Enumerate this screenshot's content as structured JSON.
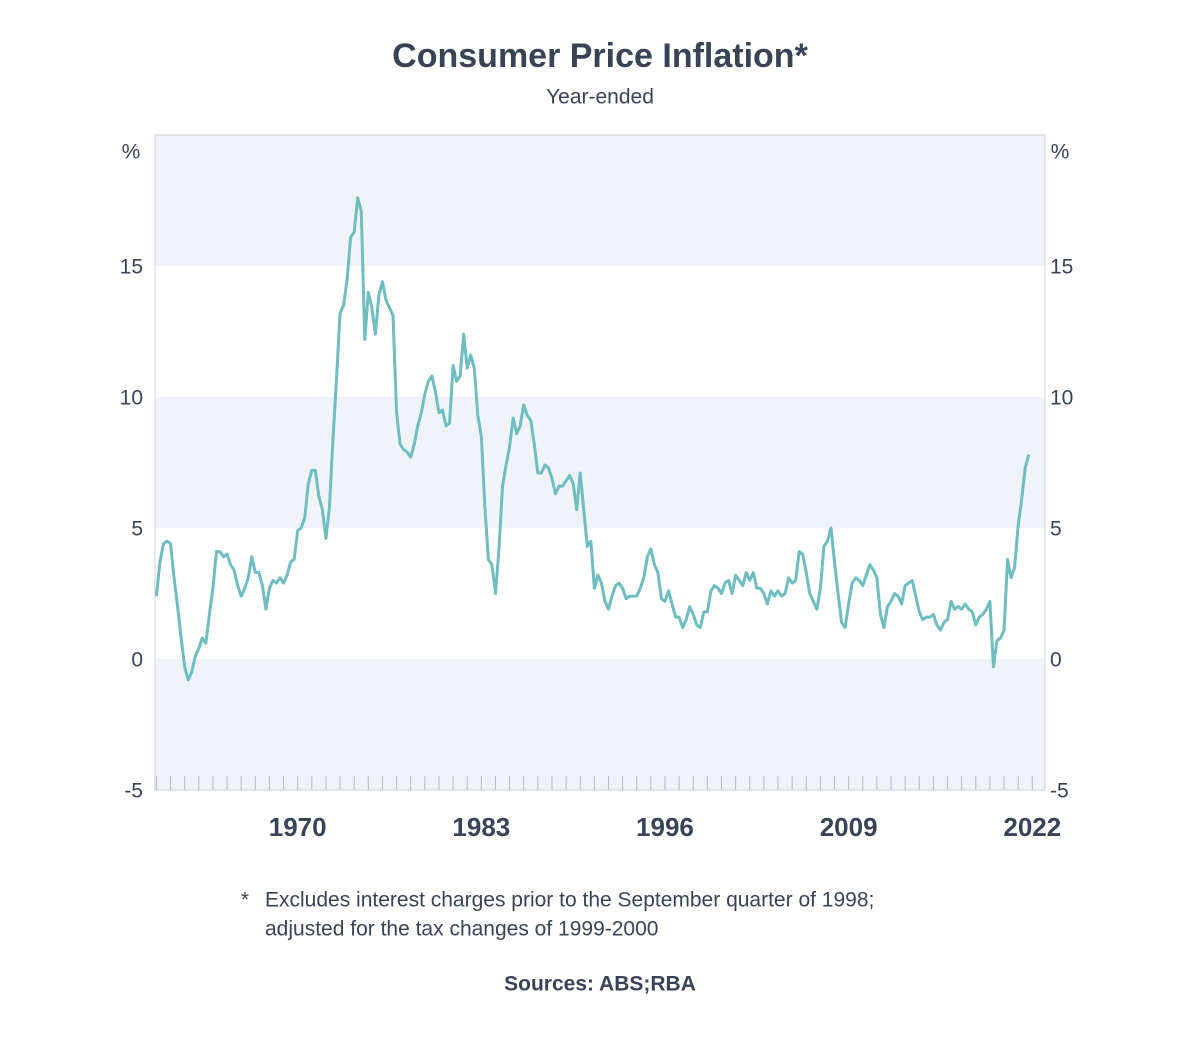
{
  "chart_data": {
    "type": "line",
    "title": "Consumer Price Inflation*",
    "subtitle": "Year-ended",
    "y_unit": "%",
    "y2_unit": "%",
    "ylim": [
      -5,
      20
    ],
    "yticks": [
      -5,
      0,
      5,
      10,
      15
    ],
    "y2lim": [
      -5,
      20
    ],
    "y2ticks": [
      -5,
      0,
      5,
      10,
      15
    ],
    "xlim": [
      1959.9,
      2022.9
    ],
    "xticks": [
      1970,
      1983,
      1996,
      2009,
      2022
    ],
    "xminorticks": [
      1960,
      1961,
      1962,
      1963,
      1964,
      1965,
      1966,
      1967,
      1968,
      1969,
      1970,
      1971,
      1972,
      1973,
      1974,
      1975,
      1976,
      1977,
      1978,
      1979,
      1980,
      1981,
      1982,
      1983,
      1984,
      1985,
      1986,
      1987,
      1988,
      1989,
      1990,
      1991,
      1992,
      1993,
      1994,
      1995,
      1996,
      1997,
      1998,
      1999,
      2000,
      2001,
      2002,
      2003,
      2004,
      2005,
      2006,
      2007,
      2008,
      2009,
      2010,
      2011,
      2012,
      2013,
      2014,
      2015,
      2016,
      2017,
      2018,
      2019,
      2020,
      2021,
      2022
    ],
    "band_color": "#eff3f7",
    "series": [
      {
        "color": "#6fbdbf",
        "x": [
          1960,
          1960.25,
          1960.5,
          1960.75,
          1961,
          1961.25,
          1961.5,
          1961.75,
          1962,
          1962.25,
          1962.5,
          1962.75,
          1963,
          1963.25,
          1963.5,
          1963.75,
          1964,
          1964.25,
          1964.5,
          1964.75,
          1965,
          1965.25,
          1965.5,
          1965.75,
          1966,
          1966.25,
          1966.5,
          1966.75,
          1967,
          1967.25,
          1967.5,
          1967.75,
          1968,
          1968.25,
          1968.5,
          1968.75,
          1969,
          1969.25,
          1969.5,
          1969.75,
          1970,
          1970.25,
          1970.5,
          1970.75,
          1971,
          1971.25,
          1971.5,
          1971.75,
          1972,
          1972.25,
          1972.5,
          1972.75,
          1973,
          1973.25,
          1973.5,
          1973.75,
          1974,
          1974.25,
          1974.5,
          1974.75,
          1975,
          1975.25,
          1975.5,
          1975.75,
          1976,
          1976.25,
          1976.5,
          1976.75,
          1977,
          1977.25,
          1977.5,
          1977.75,
          1978,
          1978.25,
          1978.5,
          1978.75,
          1979,
          1979.25,
          1979.5,
          1979.75,
          1980,
          1980.25,
          1980.5,
          1980.75,
          1981,
          1981.25,
          1981.5,
          1981.75,
          1982,
          1982.25,
          1982.5,
          1982.75,
          1983,
          1983.25,
          1983.5,
          1983.75,
          1984,
          1984.25,
          1984.5,
          1984.75,
          1985,
          1985.25,
          1985.5,
          1985.75,
          1986,
          1986.25,
          1986.5,
          1986.75,
          1987,
          1987.25,
          1987.5,
          1987.75,
          1988,
          1988.25,
          1988.5,
          1988.75,
          1989,
          1989.25,
          1989.5,
          1989.75,
          1990,
          1990.25,
          1990.5,
          1990.75,
          1991,
          1991.25,
          1991.5,
          1991.75,
          1992,
          1992.25,
          1992.5,
          1992.75,
          1993,
          1993.25,
          1993.5,
          1993.75,
          1994,
          1994.25,
          1994.5,
          1994.75,
          1995,
          1995.25,
          1995.5,
          1995.75,
          1996,
          1996.25,
          1996.5,
          1996.75,
          1997,
          1997.25,
          1997.5,
          1997.75,
          1998,
          1998.25,
          1998.5,
          1998.75,
          1999,
          1999.25,
          1999.5,
          1999.75,
          2000,
          2000.25,
          2000.5,
          2000.75,
          2001,
          2001.25,
          2001.5,
          2001.75,
          2002,
          2002.25,
          2002.5,
          2002.75,
          2003,
          2003.25,
          2003.5,
          2003.75,
          2004,
          2004.25,
          2004.5,
          2004.75,
          2005,
          2005.25,
          2005.5,
          2005.75,
          2006,
          2006.25,
          2006.5,
          2006.75,
          2007,
          2007.25,
          2007.5,
          2007.75,
          2008,
          2008.25,
          2008.5,
          2008.75,
          2009,
          2009.25,
          2009.5,
          2009.75,
          2010,
          2010.25,
          2010.5,
          2010.75,
          2011,
          2011.25,
          2011.5,
          2011.75,
          2012,
          2012.25,
          2012.5,
          2012.75,
          2013,
          2013.25,
          2013.5,
          2013.75,
          2014,
          2014.25,
          2014.5,
          2014.75,
          2015,
          2015.25,
          2015.5,
          2015.75,
          2016,
          2016.25,
          2016.5,
          2016.75,
          2017,
          2017.25,
          2017.5,
          2017.75,
          2018,
          2018.25,
          2018.5,
          2018.75,
          2019,
          2019.25,
          2019.5,
          2019.75,
          2020,
          2020.25,
          2020.5,
          2020.75,
          2021,
          2021.25,
          2021.5,
          2021.75
        ],
        "values": [
          2.4,
          3.7,
          4.4,
          4.5,
          4.4,
          3.1,
          2.0,
          0.8,
          -0.3,
          -0.8,
          -0.5,
          0.1,
          0.4,
          0.8,
          0.6,
          1.7,
          2.7,
          4.1,
          4.1,
          3.9,
          4.0,
          3.6,
          3.4,
          2.8,
          2.4,
          2.7,
          3.1,
          3.9,
          3.3,
          3.3,
          2.8,
          1.9,
          2.7,
          3.0,
          2.9,
          3.1,
          2.9,
          3.2,
          3.7,
          3.8,
          4.9,
          5.0,
          5.4,
          6.7,
          7.2,
          7.2,
          6.2,
          5.7,
          4.6,
          5.8,
          8.4,
          10.7,
          13.2,
          13.5,
          14.5,
          16.1,
          16.3,
          17.6,
          17.1,
          12.2,
          14.0,
          13.4,
          12.4,
          13.9,
          14.4,
          13.7,
          13.4,
          13.1,
          9.4,
          8.2,
          8.0,
          7.9,
          7.7,
          8.2,
          8.9,
          9.4,
          10.1,
          10.6,
          10.8,
          10.2,
          9.4,
          9.5,
          8.9,
          9.0,
          11.2,
          10.6,
          10.8,
          12.4,
          11.1,
          11.6,
          11.1,
          9.3,
          8.5,
          5.8,
          3.8,
          3.6,
          2.5,
          4.2,
          6.6,
          7.4,
          8.1,
          9.2,
          8.6,
          8.9,
          9.7,
          9.3,
          9.1,
          8.2,
          7.1,
          7.1,
          7.4,
          7.3,
          6.9,
          6.3,
          6.6,
          6.6,
          6.8,
          7.0,
          6.7,
          5.7,
          7.1,
          5.7,
          4.3,
          4.5,
          2.7,
          3.2,
          2.9,
          2.2,
          1.9,
          2.4,
          2.8,
          2.9,
          2.7,
          2.3,
          2.4,
          2.4,
          2.4,
          2.7,
          3.1,
          3.9,
          4.2,
          3.6,
          3.3,
          2.3,
          2.2,
          2.6,
          2.1,
          1.6,
          1.6,
          1.2,
          1.5,
          2.0,
          1.7,
          1.3,
          1.2,
          1.8,
          1.8,
          2.6,
          2.8,
          2.7,
          2.5,
          2.9,
          3.0,
          2.5,
          3.2,
          3.0,
          2.8,
          3.3,
          3.0,
          3.3,
          2.7,
          2.7,
          2.5,
          2.1,
          2.6,
          2.4,
          2.6,
          2.4,
          2.5,
          3.1,
          2.9,
          3.0,
          4.1,
          4.0,
          3.3,
          2.5,
          2.2,
          1.9,
          2.7,
          4.3,
          4.5,
          5.0,
          3.7,
          2.5,
          1.4,
          1.2,
          2.1,
          2.9,
          3.1,
          3.0,
          2.8,
          3.2,
          3.6,
          3.4,
          3.1,
          1.7,
          1.2,
          2.0,
          2.2,
          2.5,
          2.4,
          2.1,
          2.8,
          2.9,
          3.0,
          2.4,
          1.8,
          1.5,
          1.6,
          1.6,
          1.7,
          1.3,
          1.1,
          1.4,
          1.5,
          2.2,
          1.9,
          2.0,
          1.9,
          2.1,
          1.9,
          1.8,
          1.3,
          1.6,
          1.7,
          1.9,
          2.2,
          -0.3,
          0.7,
          0.8,
          1.1,
          3.8,
          3.1,
          3.5,
          5.1,
          6.1,
          7.3,
          7.8
        ]
      }
    ],
    "footnote_mark": "*",
    "footnote": [
      "Excludes interest charges prior to the September quarter of 1998;",
      "adjusted for the tax changes of 1999-2000"
    ],
    "sources": "Sources: ABS;RBA"
  }
}
